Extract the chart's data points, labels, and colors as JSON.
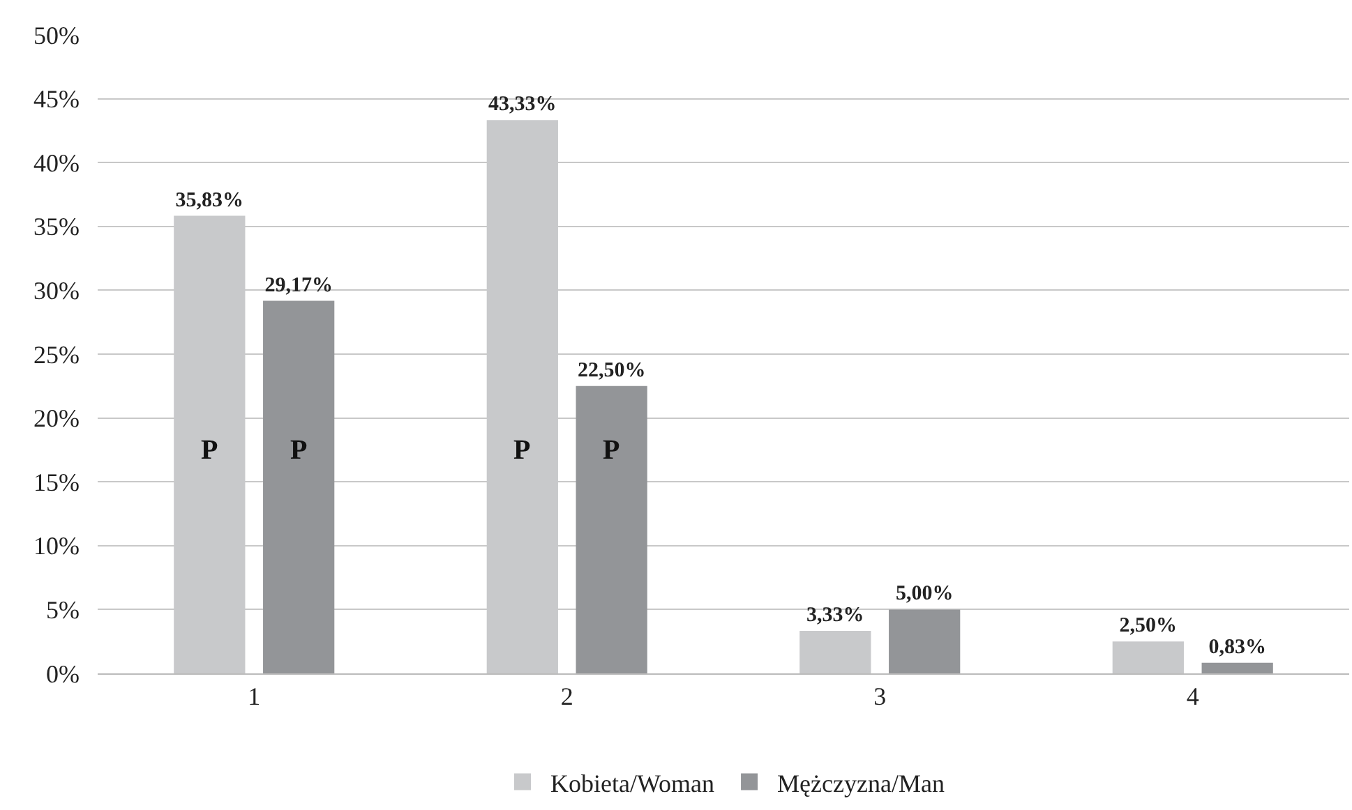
{
  "chart_data": {
    "type": "bar",
    "categories": [
      "1",
      "2",
      "3",
      "4"
    ],
    "series": [
      {
        "name": "Kobieta/Woman",
        "color": "#c8c9cb",
        "values": [
          35.83,
          43.33,
          3.33,
          2.5
        ],
        "value_labels": [
          "35,83%",
          "43,33%",
          "3,33%",
          "2,50%"
        ]
      },
      {
        "name": "Mężczyzna/Man",
        "color": "#939598",
        "values": [
          29.17,
          22.5,
          5.0,
          0.83
        ],
        "value_labels": [
          "29,17%",
          "22,50%",
          "5,00%",
          "0,83%"
        ]
      }
    ],
    "ylim": [
      0,
      50
    ],
    "yticks": [
      {
        "value": 0,
        "label": "0%"
      },
      {
        "value": 5,
        "label": "5%"
      },
      {
        "value": 10,
        "label": "10%"
      },
      {
        "value": 15,
        "label": "15%"
      },
      {
        "value": 20,
        "label": "20%"
      },
      {
        "value": 25,
        "label": "25%"
      },
      {
        "value": 30,
        "label": "30%"
      },
      {
        "value": 35,
        "label": "35%"
      },
      {
        "value": 40,
        "label": "40%"
      },
      {
        "value": 45,
        "label": "45%"
      },
      {
        "value": 50,
        "label": "50%"
      }
    ],
    "grid": "y",
    "legend": "bottom",
    "annotations": [
      "P",
      "P",
      "P",
      "P"
    ]
  }
}
